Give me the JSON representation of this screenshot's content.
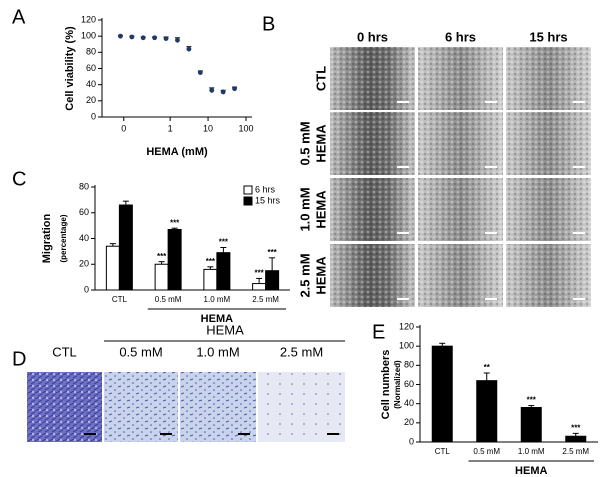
{
  "chart_data": [
    {
      "type": "scatter",
      "panel": "A",
      "xlabel": "HEMA (mM)",
      "ylabel": "Cell viability (%)",
      "xscale": "log",
      "x": [
        0.049,
        0.098,
        0.195,
        0.39,
        0.78,
        1.56,
        3.125,
        6.25,
        12.5,
        25,
        50
      ],
      "values": [
        100,
        99,
        98,
        98,
        97,
        95,
        84,
        55,
        33,
        31,
        35
      ],
      "errors": [
        1,
        1,
        1,
        1,
        2,
        3,
        3,
        2,
        3,
        2,
        2
      ],
      "color": "#1f3a68",
      "xlim": [
        0.016,
        144
      ],
      "ylim": [
        0,
        120
      ],
      "xticks": [
        {
          "value": 0.06,
          "label": "0"
        },
        1,
        10,
        100
      ],
      "yticks": [
        0,
        20,
        40,
        60,
        80,
        100,
        120
      ]
    },
    {
      "type": "bar",
      "panel": "C",
      "ylabel": "Migration",
      "ylabel_sub": "(percentage)",
      "categories": [
        "CTL",
        "0.5 mM",
        "1.0 mM",
        "2.5 mM"
      ],
      "group_label": "HEMA",
      "series": [
        {
          "name": "6 hrs",
          "color": "#ffffff",
          "values": [
            34,
            20,
            16,
            5
          ],
          "errors": [
            2,
            2,
            2,
            4
          ],
          "significance": [
            null,
            "***",
            "***",
            "***"
          ]
        },
        {
          "name": "15 hrs",
          "color": "#000000",
          "values": [
            66,
            47,
            29,
            15
          ],
          "errors": [
            3,
            1,
            4,
            10
          ],
          "significance": [
            null,
            "***",
            "***",
            "***"
          ]
        }
      ],
      "ylim": [
        0,
        80
      ],
      "yticks": [
        0,
        20,
        40,
        60,
        80
      ],
      "legend": "top-right"
    },
    {
      "type": "bar",
      "panel": "E",
      "ylabel": "Cell numbers",
      "ylabel_sub": "(Normalized)",
      "categories": [
        "CTL",
        "0.5 mM",
        "1.0 mM",
        "2.5 mM"
      ],
      "group_label": "HEMA",
      "values": [
        100,
        64,
        36,
        6
      ],
      "errors": [
        3,
        8,
        2,
        3
      ],
      "significance": [
        null,
        "**",
        "***",
        "***"
      ],
      "color": "#000000",
      "ylim": [
        0,
        120
      ],
      "yticks": [
        0,
        20,
        40,
        60,
        80,
        100,
        120
      ]
    }
  ],
  "image_panels": [
    {
      "panel": "B",
      "columns": [
        "0 hrs",
        "6 hrs",
        "15 hrs"
      ],
      "rows": [
        [
          "CTL"
        ],
        [
          "0.5 mM",
          "HEMA"
        ],
        [
          "1.0 mM",
          "HEMA"
        ],
        [
          "2.5 mM",
          "HEMA"
        ]
      ]
    },
    {
      "panel": "D",
      "group_label": "HEMA",
      "columns": [
        "CTL",
        "0.5 mM",
        "1.0 mM",
        "2.5 mM"
      ]
    }
  ]
}
